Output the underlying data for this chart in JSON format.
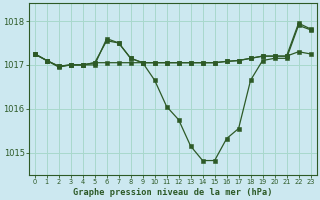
{
  "title": "Graphe pression niveau de la mer (hPa)",
  "bg_color": "#cce8f0",
  "grid_color": "#a8d8cc",
  "line_color": "#2d5a27",
  "xlim": [
    -0.5,
    23.5
  ],
  "ylim": [
    1014.5,
    1018.4
  ],
  "yticks": [
    1015,
    1016,
    1017,
    1018
  ],
  "xticks": [
    0,
    1,
    2,
    3,
    4,
    5,
    6,
    7,
    8,
    9,
    10,
    11,
    12,
    13,
    14,
    15,
    16,
    17,
    18,
    19,
    20,
    21,
    22,
    23
  ],
  "series1": [
    1017.25,
    1017.1,
    1016.95,
    1017.0,
    1017.0,
    1017.0,
    1017.6,
    1017.5,
    1017.15,
    1017.05,
    1016.65,
    1016.05,
    1015.75,
    1015.15,
    1014.82,
    1014.82,
    1015.32,
    1015.55,
    1016.65,
    1017.1,
    1017.15,
    1017.15,
    1017.9,
    1017.8
  ],
  "series2": [
    1017.25,
    1017.1,
    1016.97,
    1017.0,
    1017.0,
    1017.05,
    1017.05,
    1017.05,
    1017.05,
    1017.05,
    1017.05,
    1017.05,
    1017.05,
    1017.05,
    1017.05,
    1017.05,
    1017.08,
    1017.1,
    1017.15,
    1017.2,
    1017.2,
    1017.2,
    1017.3,
    1017.25
  ],
  "series3": [
    1017.25,
    1017.1,
    1016.97,
    1017.0,
    1017.0,
    1017.05,
    1017.55,
    1017.5,
    1017.15,
    1017.05,
    1017.05,
    1017.05,
    1017.05,
    1017.05,
    1017.05,
    1017.05,
    1017.08,
    1017.1,
    1017.15,
    1017.2,
    1017.2,
    1017.2,
    1017.95,
    1017.82
  ]
}
